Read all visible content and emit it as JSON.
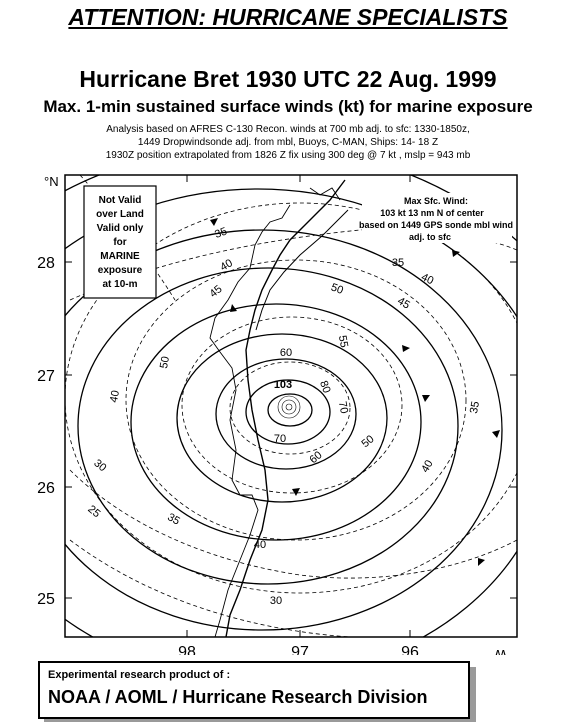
{
  "header": {
    "attention": "ATTENTION: HURRICANE SPECIALISTS",
    "title": "Hurricane Bret 1930 UTC 22 Aug. 1999",
    "subtitle": "Max. 1-min sustained surface winds (kt) for marine exposure",
    "notes": [
      "Analysis based on AFRES C-130  Recon. winds at 700 mb adj. to sfc: 1330-1850z,",
      "1449 Dropwindsonde adj. from mbl, Buoys, C-MAN, Ships: 14- 18 Z",
      "1930Z  position extrapolated from  1826 Z fix  using 300 deg @ 7 kt , mslp = 943 mb"
    ]
  },
  "map": {
    "lat_labels": [
      "28",
      "27",
      "26",
      "25"
    ],
    "lon_labels": [
      "98",
      "97",
      "96"
    ],
    "corner_n": "°N",
    "corner_w": "°W",
    "warning_box": [
      "Not Valid",
      "over Land",
      "Valid only",
      "for",
      "MARINE",
      "exposure",
      "at 10-m"
    ],
    "maxwind_box": [
      "Max Sfc. Wind:",
      "103 kt   13 nm N of center",
      "based on 1449 GPS sonde mbl wind",
      "adj. to sfc"
    ],
    "max_label": "103",
    "contour_labels": {
      "c25": "25",
      "c30": "30",
      "c35": "35",
      "c40": "40",
      "c45": "45",
      "c50": "50",
      "c55": "55",
      "c60": "60",
      "c70": "70",
      "c80": "80"
    }
  },
  "footer": {
    "line1": "Experimental research product of :",
    "line2": "NOAA / AOML / Hurricane Research Division"
  }
}
